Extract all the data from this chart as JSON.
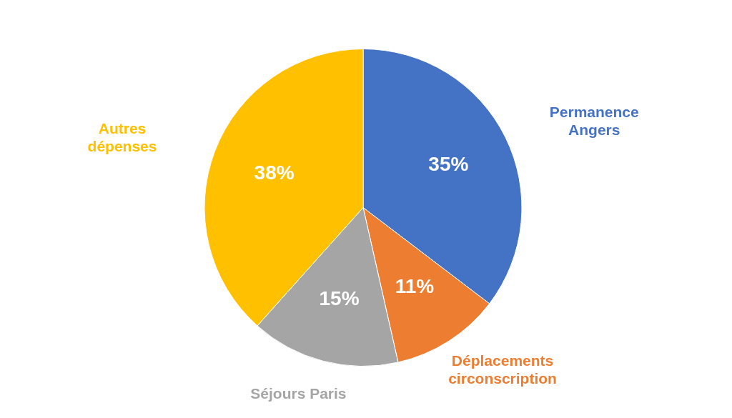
{
  "chart_data": {
    "type": "pie",
    "categories": [
      "Permanence Angers",
      "Déplacements circonscription",
      "Séjours Paris",
      "Autres dépenses"
    ],
    "values": [
      35,
      11,
      15,
      38
    ],
    "colors": [
      "#4472c4",
      "#ed7d31",
      "#a5a5a5",
      "#ffc000"
    ],
    "value_labels": [
      "35%",
      "11%",
      "15%",
      "38%"
    ],
    "legend": false
  }
}
